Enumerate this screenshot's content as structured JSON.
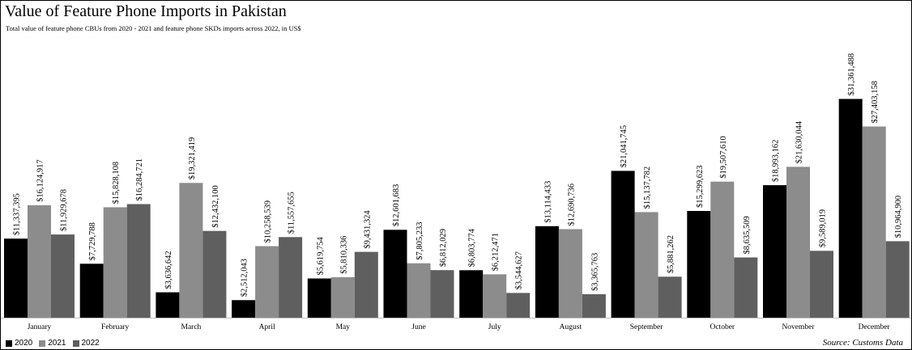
{
  "title": "Value of Feature Phone Imports in Pakistan",
  "subtitle": "Total value of feature phone CBUs from 2020 - 2021 and feature phone SKDs imports across 2022, in US$",
  "source": "Source: Customs Data",
  "chart_data": {
    "type": "bar",
    "title": "Value of Feature Phone Imports in Pakistan",
    "subtitle": "Total value of feature phone CBUs from 2020 - 2021 and feature phone SKDs imports across 2022, in US$",
    "categories": [
      "January",
      "February",
      "March",
      "April",
      "May",
      "June",
      "July",
      "August",
      "September",
      "October",
      "November",
      "December"
    ],
    "series": [
      {
        "name": "2020",
        "color": "#000000",
        "values": [
          11337395,
          7729788,
          3636642,
          2512043,
          5619754,
          12601683,
          6803774,
          13114433,
          21041745,
          15299623,
          18993162,
          31361488
        ],
        "labels": [
          "$11,337,395",
          "$7,729,788",
          "$3,636,642",
          "$2,512,043",
          "$5,619,754",
          "$12,601,683",
          "$6,803,774",
          "$13,114,433",
          "$21,041,745",
          "$15,299,623",
          "$18,993,162",
          "$31,361,488"
        ]
      },
      {
        "name": "2021",
        "color": "#8c8c8c",
        "values": [
          16124917,
          15828108,
          19321419,
          10258539,
          5810336,
          7805233,
          6212471,
          12690736,
          15137782,
          19507610,
          21630044,
          27403158
        ],
        "labels": [
          "$16,124,917",
          "$15,828,108",
          "$19,321,419",
          "$10,258,539",
          "$5,810,336",
          "$7,805,233",
          "$6,212,471",
          "$12,690,736",
          "$15,137,782",
          "$19,507,610",
          "$21,630,044",
          "$27,403,158"
        ]
      },
      {
        "name": "2022",
        "color": "#5f5f5f",
        "values": [
          11929678,
          16284721,
          12432100,
          11557655,
          9431324,
          6812029,
          3544627,
          3365763,
          5881262,
          8635509,
          9589019,
          10964900
        ],
        "labels": [
          "$11,929,678",
          "$16,284,721",
          "$12,432,100",
          "$11,557,655",
          "$9,431,324",
          "$6,812,029",
          "$3,544,627",
          "$3,365,763",
          "$5,881,262",
          "$8,635,509",
          "$9,589,019",
          "$10,964,900"
        ]
      }
    ],
    "ylim": [
      0,
      35000000
    ],
    "grid": false,
    "legend_position": "bottom-left"
  }
}
